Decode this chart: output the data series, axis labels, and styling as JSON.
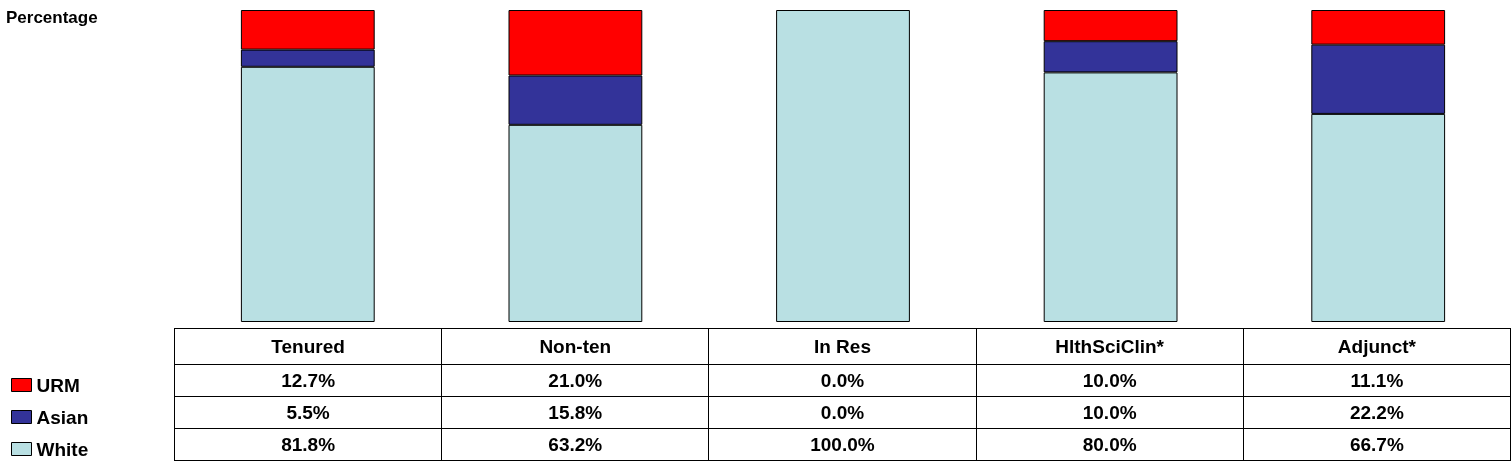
{
  "chart_data": {
    "type": "bar",
    "stacked": true,
    "ylabel": "Percentage",
    "categories": [
      "Tenured",
      "Non-ten",
      "In Res",
      "HlthSciClin*",
      "Adjunct*"
    ],
    "ylim": [
      0,
      100
    ],
    "legend": "bottom left",
    "series": [
      {
        "name": "White",
        "color": "#b9e0e3",
        "values": [
          81.8,
          63.2,
          100.0,
          80.0,
          66.7
        ],
        "value_labels": [
          "81.8%",
          "63.2%",
          "100.0%",
          "80.0%",
          "66.7%"
        ]
      },
      {
        "name": "Asian",
        "color": "#333399",
        "values": [
          5.5,
          15.8,
          0.0,
          10.0,
          22.2
        ],
        "value_labels": [
          "5.5%",
          "15.8%",
          "0.0%",
          "10.0%",
          "22.2%"
        ]
      },
      {
        "name": "URM",
        "color": "#ff0000",
        "values": [
          12.7,
          21.0,
          0.0,
          10.0,
          11.1
        ],
        "value_labels": [
          "12.7%",
          "21.0%",
          "0.0%",
          "10.0%",
          "11.1%"
        ]
      }
    ]
  }
}
